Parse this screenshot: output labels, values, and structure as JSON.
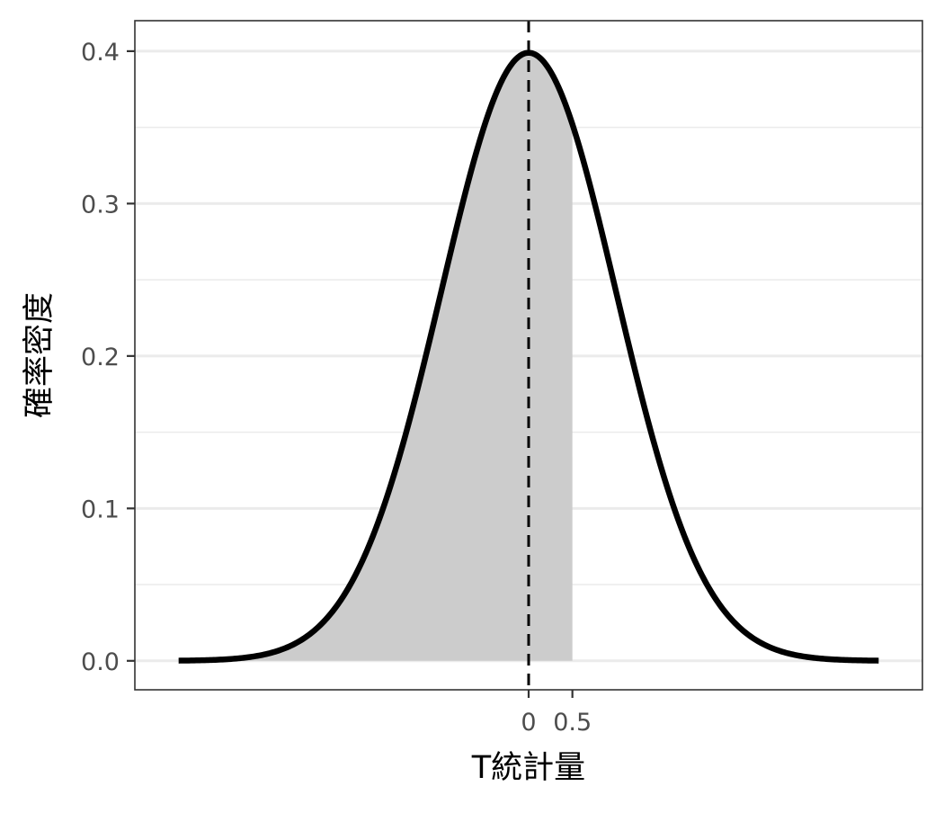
{
  "chart_data": {
    "type": "area",
    "xlabel": "T統計量",
    "ylabel": "確率密度",
    "xlim": [
      -4.5,
      4.5
    ],
    "ylim": [
      -0.019,
      0.42
    ],
    "x_ticks": [
      0,
      0.5
    ],
    "x_tick_labels": [
      "0",
      "0.5"
    ],
    "y_ticks": [
      0.0,
      0.1,
      0.2,
      0.3,
      0.4
    ],
    "y_tick_labels": [
      "0.0",
      "0.1",
      "0.2",
      "0.3",
      "0.4"
    ],
    "grid": true,
    "series": [
      {
        "kind": "line",
        "x": [
          -4.0,
          -3.5,
          -3.0,
          -2.5,
          -2.0,
          -1.5,
          -1.0,
          -0.5,
          0.0,
          0.5,
          1.0,
          1.5,
          2.0,
          2.5,
          3.0,
          3.5,
          4.0
        ],
        "y": [
          0.0001,
          0.0009,
          0.0044,
          0.0175,
          0.054,
          0.1295,
          0.242,
          0.3521,
          0.3989,
          0.3521,
          0.242,
          0.1295,
          0.054,
          0.0175,
          0.0044,
          0.0009,
          0.0001
        ],
        "color": "#000000"
      },
      {
        "kind": "shaded_area",
        "x_range": [
          -4.0,
          0.5
        ],
        "color": "#cccccc"
      }
    ],
    "vline": {
      "x": 0,
      "style": "dashed",
      "color": "#000000"
    }
  }
}
